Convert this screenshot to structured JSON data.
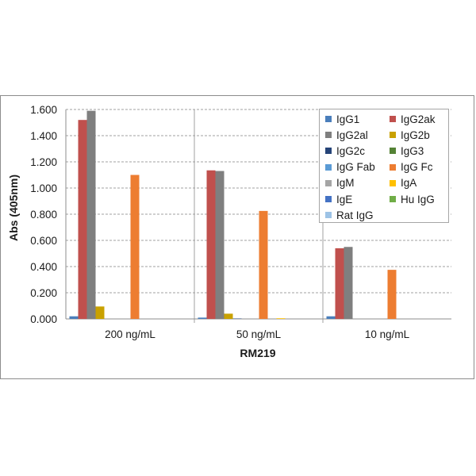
{
  "chart_data": {
    "type": "bar",
    "title": "",
    "xlabel": "RM219",
    "ylabel": "Abs (405nm)",
    "ylim": [
      0,
      1.6
    ],
    "yticks": [
      "0.000",
      "0.200",
      "0.400",
      "0.600",
      "0.800",
      "1.000",
      "1.200",
      "1.400",
      "1.600"
    ],
    "categories": [
      "200 ng/mL",
      "50 ng/mL",
      "10 ng/mL"
    ],
    "grid": true,
    "legend_position": "top-right",
    "series": [
      {
        "name": "IgG1",
        "color": "#4a7ebb",
        "values": [
          0.02,
          0.01,
          0.02
        ]
      },
      {
        "name": "IgG2ak",
        "color": "#c0504d",
        "values": [
          1.52,
          1.135,
          0.54
        ]
      },
      {
        "name": "IgG2al",
        "color": "#7f7f7f",
        "values": [
          1.59,
          1.13,
          0.55
        ]
      },
      {
        "name": "IgG2b",
        "color": "#c9a100",
        "values": [
          0.095,
          0.04,
          0.0
        ]
      },
      {
        "name": "IgG2c",
        "color": "#264478",
        "values": [
          0.0,
          0.003,
          0.0
        ]
      },
      {
        "name": "IgG3",
        "color": "#548235",
        "values": [
          0.0,
          0.0,
          0.0
        ]
      },
      {
        "name": "IgG Fab",
        "color": "#5b9bd5",
        "values": [
          0.0,
          0.0,
          0.0
        ]
      },
      {
        "name": "IgG Fc",
        "color": "#ed7d31",
        "values": [
          1.1,
          0.825,
          0.375
        ]
      },
      {
        "name": "IgM",
        "color": "#a5a5a5",
        "values": [
          0.0,
          0.0,
          0.0
        ]
      },
      {
        "name": "IgA",
        "color": "#ffc000",
        "values": [
          0.0,
          0.005,
          0.0
        ]
      },
      {
        "name": "IgE",
        "color": "#4472c4",
        "values": [
          0.0,
          0.0,
          0.0
        ]
      },
      {
        "name": "Hu IgG",
        "color": "#70ad47",
        "values": [
          0.0,
          0.0,
          0.0
        ]
      },
      {
        "name": "Rat IgG",
        "color": "#9dc3e6",
        "values": [
          0.0,
          0.0,
          0.0
        ]
      }
    ]
  }
}
